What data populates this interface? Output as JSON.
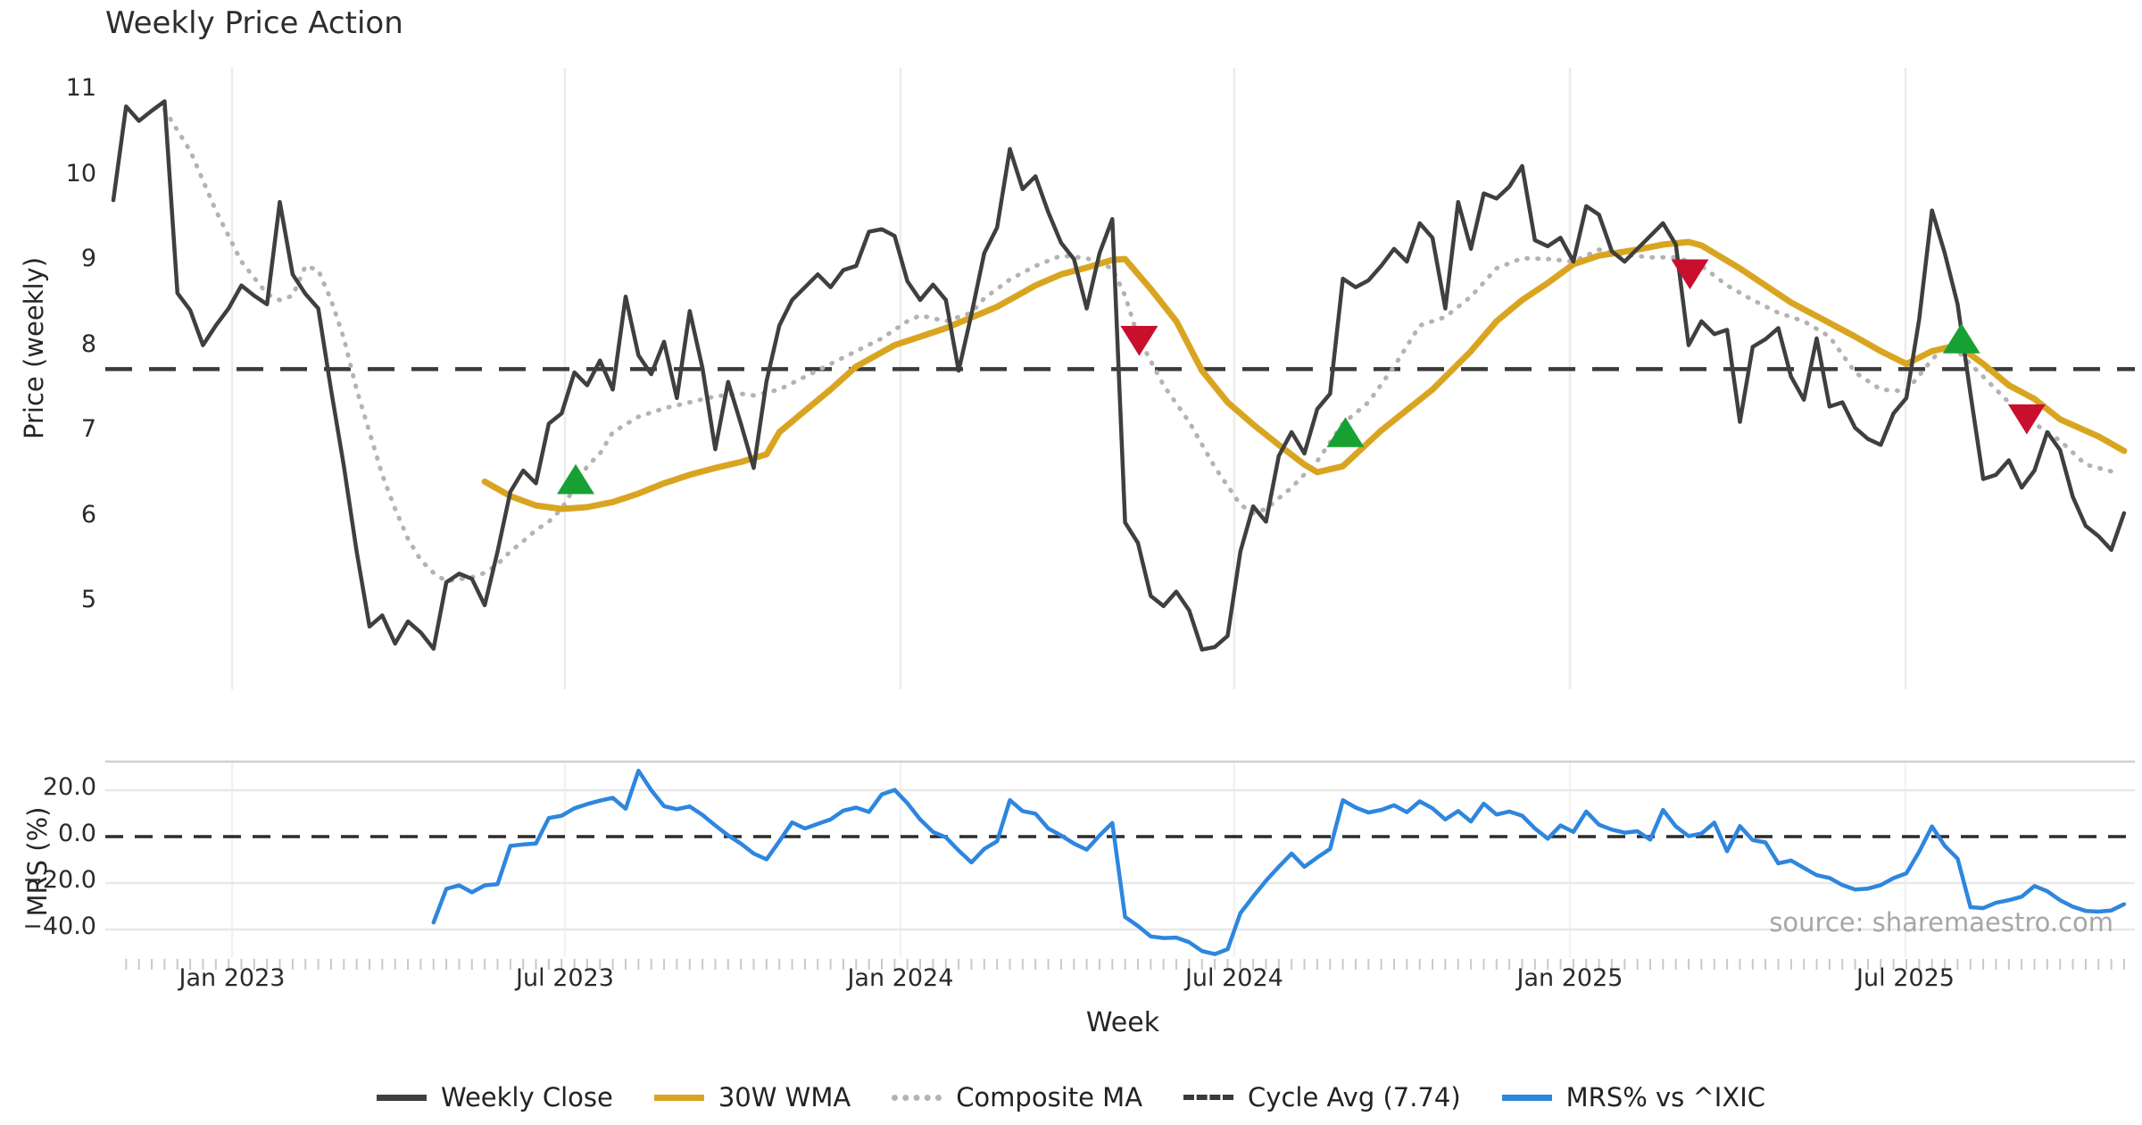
{
  "title": "Weekly Price Action",
  "xlabel": "Week",
  "source": "source: sharemaestro.com",
  "panels": {
    "price": {
      "ylabel": "Price (weekly)"
    },
    "mrs": {
      "ylabel": "MRS (%)"
    }
  },
  "chart_data": {
    "type": "line",
    "title": "Weekly Price Action",
    "xlabel": "Week",
    "x_tick_labels": [
      "Jan 2023",
      "Jul 2023",
      "Jan 2024",
      "Jul 2024",
      "Jan 2025",
      "Jul 2025"
    ],
    "x_tick_weeks": [
      9.27,
      35.26,
      61.46,
      87.52,
      113.73,
      139.93
    ],
    "weeks_total": 158,
    "grid": "on",
    "legend_position": "bottom-center",
    "legend": [
      {
        "label": "Weekly Close",
        "style": "solid",
        "color": "#3f3f3f"
      },
      {
        "label": "30W WMA",
        "style": "solid",
        "color": "#d9a521"
      },
      {
        "label": "Composite MA",
        "style": "dotted",
        "color": "#b3b3b3"
      },
      {
        "label": "Cycle Avg (7.74)",
        "style": "dashed",
        "color": "#3a3a3a"
      },
      {
        "label": "MRS% vs ^IXIC",
        "style": "solid",
        "color": "#2e86de"
      }
    ],
    "price_panel": {
      "ylabel": "Price (weekly)",
      "ylim": [
        4.2,
        11.3
      ],
      "yticks": [
        11,
        10,
        9,
        8,
        7,
        6,
        5
      ],
      "cycle_avg": 7.74,
      "weekly_close": [
        9.72,
        10.82,
        10.65,
        10.77,
        10.88,
        8.63,
        8.43,
        8.02,
        8.25,
        8.45,
        8.72,
        8.6,
        8.5,
        9.7,
        8.85,
        8.62,
        8.45,
        7.5,
        6.6,
        5.6,
        4.72,
        4.85,
        4.52,
        4.78,
        4.65,
        4.46,
        5.24,
        5.34,
        5.28,
        4.97,
        5.6,
        6.3,
        6.55,
        6.4,
        7.1,
        7.22,
        7.7,
        7.55,
        7.84,
        7.5,
        8.59,
        7.9,
        7.68,
        8.06,
        7.4,
        8.42,
        7.75,
        6.8,
        7.59,
        7.1,
        6.58,
        7.6,
        8.25,
        8.55,
        8.7,
        8.85,
        8.7,
        8.9,
        8.95,
        9.35,
        9.38,
        9.3,
        8.77,
        8.55,
        8.73,
        8.55,
        7.72,
        8.38,
        9.1,
        9.4,
        10.32,
        9.85,
        10.0,
        9.58,
        9.22,
        9.03,
        8.45,
        9.1,
        9.5,
        5.94,
        5.7,
        5.08,
        4.96,
        5.13,
        4.91,
        4.45,
        4.48,
        4.61,
        5.6,
        6.13,
        5.95,
        6.72,
        7.0,
        6.75,
        7.27,
        7.45,
        8.8,
        8.7,
        8.78,
        8.95,
        9.15,
        9.0,
        9.45,
        9.28,
        8.45,
        9.7,
        9.15,
        9.8,
        9.74,
        9.88,
        10.12,
        9.25,
        9.18,
        9.28,
        9.0,
        9.65,
        9.55,
        9.12,
        9.0,
        9.15,
        9.3,
        9.45,
        9.2,
        8.02,
        8.3,
        8.15,
        8.2,
        7.12,
        8.0,
        8.09,
        8.22,
        7.65,
        7.38,
        8.1,
        7.3,
        7.35,
        7.05,
        6.92,
        6.85,
        7.22,
        7.4,
        8.32,
        9.6,
        9.1,
        8.5,
        7.45,
        6.45,
        6.5,
        6.67,
        6.35,
        6.55,
        7.0,
        6.79,
        6.24,
        5.9,
        5.78,
        5.62,
        6.05
      ],
      "wma_30w": [
        [
          29,
          6.42
        ],
        [
          31,
          6.25
        ],
        [
          33,
          6.14
        ],
        [
          35,
          6.1
        ],
        [
          37,
          6.12
        ],
        [
          39,
          6.18
        ],
        [
          41,
          6.28
        ],
        [
          43,
          6.4
        ],
        [
          45,
          6.5
        ],
        [
          47,
          6.58
        ],
        [
          49,
          6.65
        ],
        [
          51,
          6.74
        ],
        [
          52,
          7.0
        ],
        [
          54,
          7.25
        ],
        [
          56,
          7.5
        ],
        [
          58,
          7.77
        ],
        [
          61,
          8.02
        ],
        [
          65,
          8.22
        ],
        [
          69,
          8.47
        ],
        [
          72,
          8.72
        ],
        [
          74,
          8.85
        ],
        [
          76,
          8.93
        ],
        [
          78,
          9.02
        ],
        [
          79,
          9.03
        ],
        [
          81,
          8.68
        ],
        [
          83,
          8.3
        ],
        [
          85,
          7.72
        ],
        [
          87,
          7.35
        ],
        [
          89,
          7.09
        ],
        [
          91,
          6.85
        ],
        [
          93,
          6.62
        ],
        [
          94,
          6.53
        ],
        [
          96,
          6.6
        ],
        [
          99,
          7.02
        ],
        [
          103,
          7.5
        ],
        [
          106,
          7.95
        ],
        [
          108,
          8.3
        ],
        [
          110,
          8.55
        ],
        [
          112,
          8.75
        ],
        [
          114,
          8.97
        ],
        [
          116,
          9.07
        ],
        [
          119,
          9.14
        ],
        [
          121,
          9.2
        ],
        [
          123,
          9.23
        ],
        [
          124,
          9.19
        ],
        [
          127,
          8.92
        ],
        [
          131,
          8.52
        ],
        [
          136,
          8.12
        ],
        [
          138,
          7.95
        ],
        [
          140,
          7.8
        ],
        [
          142,
          7.95
        ],
        [
          144,
          8.02
        ],
        [
          146,
          7.8
        ],
        [
          148,
          7.55
        ],
        [
          150,
          7.39
        ],
        [
          152,
          7.15
        ],
        [
          155,
          6.95
        ],
        [
          157,
          6.78
        ]
      ],
      "composite_ma": [
        [
          4,
          10.78
        ],
        [
          6,
          10.3
        ],
        [
          8,
          9.6
        ],
        [
          10,
          9.0
        ],
        [
          12,
          8.62
        ],
        [
          13,
          8.55
        ],
        [
          14,
          8.6
        ],
        [
          15,
          8.95
        ],
        [
          16,
          8.9
        ],
        [
          17,
          8.55
        ],
        [
          18,
          8.1
        ],
        [
          19,
          7.5
        ],
        [
          20,
          7.0
        ],
        [
          21,
          6.5
        ],
        [
          22,
          6.1
        ],
        [
          23,
          5.75
        ],
        [
          24,
          5.5
        ],
        [
          25,
          5.35
        ],
        [
          26,
          5.25
        ],
        [
          28,
          5.3
        ],
        [
          29,
          5.35
        ],
        [
          30,
          5.45
        ],
        [
          31,
          5.6
        ],
        [
          32,
          5.72
        ],
        [
          33,
          5.85
        ],
        [
          34,
          5.95
        ],
        [
          35,
          6.1
        ],
        [
          36,
          6.35
        ],
        [
          37,
          6.6
        ],
        [
          38,
          6.75
        ],
        [
          39,
          7.0
        ],
        [
          41,
          7.18
        ],
        [
          43,
          7.28
        ],
        [
          45,
          7.35
        ],
        [
          47,
          7.42
        ],
        [
          49,
          7.45
        ],
        [
          50,
          7.43
        ],
        [
          52,
          7.5
        ],
        [
          54,
          7.65
        ],
        [
          56,
          7.8
        ],
        [
          58,
          7.95
        ],
        [
          60,
          8.1
        ],
        [
          62,
          8.3
        ],
        [
          63,
          8.37
        ],
        [
          65,
          8.3
        ],
        [
          67,
          8.4
        ],
        [
          68,
          8.57
        ],
        [
          70,
          8.79
        ],
        [
          72,
          8.95
        ],
        [
          74,
          9.07
        ],
        [
          76,
          9.04
        ],
        [
          78,
          8.92
        ],
        [
          79,
          8.6
        ],
        [
          80,
          8.12
        ],
        [
          82,
          7.55
        ],
        [
          84,
          7.12
        ],
        [
          86,
          6.59
        ],
        [
          88,
          6.15
        ],
        [
          89,
          6.05
        ],
        [
          90,
          6.1
        ],
        [
          92,
          6.35
        ],
        [
          94,
          6.66
        ],
        [
          96,
          7.1
        ],
        [
          98,
          7.35
        ],
        [
          100,
          7.77
        ],
        [
          102,
          8.25
        ],
        [
          104,
          8.35
        ],
        [
          106,
          8.59
        ],
        [
          108,
          8.92
        ],
        [
          110,
          9.04
        ],
        [
          112,
          9.03
        ],
        [
          114,
          9.0
        ],
        [
          116,
          9.14
        ],
        [
          118,
          9.08
        ],
        [
          120,
          9.05
        ],
        [
          122,
          9.05
        ],
        [
          124,
          8.95
        ],
        [
          126,
          8.72
        ],
        [
          128,
          8.55
        ],
        [
          130,
          8.4
        ],
        [
          132,
          8.3
        ],
        [
          134,
          8.12
        ],
        [
          136,
          7.7
        ],
        [
          138,
          7.5
        ],
        [
          140,
          7.48
        ],
        [
          142,
          7.85
        ],
        [
          143,
          8.0
        ],
        [
          144,
          7.95
        ],
        [
          146,
          7.65
        ],
        [
          148,
          7.35
        ],
        [
          150,
          7.1
        ],
        [
          152,
          6.9
        ],
        [
          154,
          6.62
        ],
        [
          156,
          6.54
        ]
      ],
      "markers": [
        {
          "signal": "buy",
          "week": 36.1,
          "price": 6.45
        },
        {
          "signal": "sell",
          "week": 80.1,
          "price": 8.07
        },
        {
          "signal": "buy",
          "week": 96.2,
          "price": 7.0
        },
        {
          "signal": "sell",
          "week": 123.1,
          "price": 8.85
        },
        {
          "signal": "buy",
          "week": 144.3,
          "price": 8.1
        },
        {
          "signal": "sell",
          "week": 149.4,
          "price": 7.15
        }
      ]
    },
    "mrs_panel": {
      "ylabel": "MRS (%)",
      "ylim": [
        -55,
        33
      ],
      "yticks": [
        {
          "v": 20,
          "label": "20.0"
        },
        {
          "v": 0,
          "label": "0.0"
        },
        {
          "v": -20,
          "label": "−20.0"
        },
        {
          "v": -40,
          "label": "−40.0"
        }
      ],
      "zero_line": 0,
      "mrs_vs_ixic": [
        [
          25,
          -37.0
        ],
        [
          26,
          -22.5
        ],
        [
          27,
          -21.0
        ],
        [
          28,
          -24.0
        ],
        [
          29,
          -21.0
        ],
        [
          30,
          -20.5
        ],
        [
          31,
          -4.0
        ],
        [
          32,
          -3.4
        ],
        [
          33,
          -3.0
        ],
        [
          34,
          8.0
        ],
        [
          35,
          9.0
        ],
        [
          36,
          12.2
        ],
        [
          37,
          14.0
        ],
        [
          38,
          15.5
        ],
        [
          39,
          16.7
        ],
        [
          40,
          12.0
        ],
        [
          41,
          28.4
        ],
        [
          42,
          20.0
        ],
        [
          43,
          13.1
        ],
        [
          44,
          11.8
        ],
        [
          45,
          13.0
        ],
        [
          46,
          9.3
        ],
        [
          47,
          4.8
        ],
        [
          48,
          0.5
        ],
        [
          49,
          -3.0
        ],
        [
          50,
          -7.3
        ],
        [
          51,
          -9.8
        ],
        [
          52,
          -2.0
        ],
        [
          53,
          6.1
        ],
        [
          54,
          3.5
        ],
        [
          55,
          5.5
        ],
        [
          56,
          7.4
        ],
        [
          57,
          11.2
        ],
        [
          58,
          12.5
        ],
        [
          59,
          10.6
        ],
        [
          60,
          18.2
        ],
        [
          61,
          20.1
        ],
        [
          62,
          14.4
        ],
        [
          63,
          7.4
        ],
        [
          64,
          2.0
        ],
        [
          65,
          -0.3
        ],
        [
          66,
          -6.0
        ],
        [
          67,
          -11.1
        ],
        [
          68,
          -5.3
        ],
        [
          69,
          -2.0
        ],
        [
          70,
          15.7
        ],
        [
          71,
          11.0
        ],
        [
          72,
          9.9
        ],
        [
          73,
          3.5
        ],
        [
          74,
          0.5
        ],
        [
          75,
          -3.0
        ],
        [
          76,
          -5.6
        ],
        [
          77,
          0.5
        ],
        [
          78,
          5.9
        ],
        [
          79,
          -34.6
        ],
        [
          80,
          -38.5
        ],
        [
          81,
          -43.0
        ],
        [
          82,
          -43.7
        ],
        [
          83,
          -43.5
        ],
        [
          84,
          -45.5
        ],
        [
          85,
          -49.3
        ],
        [
          86,
          -50.6
        ],
        [
          87,
          -48.5
        ],
        [
          88,
          -33.0
        ],
        [
          89,
          -25.8
        ],
        [
          90,
          -19.0
        ],
        [
          91,
          -13.0
        ],
        [
          92,
          -7.3
        ],
        [
          93,
          -13.0
        ],
        [
          94,
          -9.0
        ],
        [
          95,
          -5.3
        ],
        [
          96,
          15.7
        ],
        [
          97,
          12.5
        ],
        [
          98,
          10.4
        ],
        [
          99,
          11.5
        ],
        [
          100,
          13.5
        ],
        [
          101,
          10.5
        ],
        [
          102,
          15.2
        ],
        [
          103,
          12.2
        ],
        [
          104,
          7.4
        ],
        [
          105,
          11.0
        ],
        [
          106,
          6.5
        ],
        [
          107,
          14.2
        ],
        [
          108,
          9.5
        ],
        [
          109,
          10.8
        ],
        [
          110,
          9.0
        ],
        [
          111,
          3.5
        ],
        [
          112,
          -0.9
        ],
        [
          113,
          4.8
        ],
        [
          114,
          2.0
        ],
        [
          115,
          10.8
        ],
        [
          116,
          5.1
        ],
        [
          117,
          3.0
        ],
        [
          118,
          1.7
        ],
        [
          119,
          2.3
        ],
        [
          120,
          -1.3
        ],
        [
          121,
          11.5
        ],
        [
          122,
          4.4
        ],
        [
          123,
          0.2
        ],
        [
          124,
          1.3
        ],
        [
          125,
          6.0
        ],
        [
          126,
          -6.3
        ],
        [
          127,
          4.5
        ],
        [
          128,
          -1.5
        ],
        [
          129,
          -2.5
        ],
        [
          130,
          -11.5
        ],
        [
          131,
          -10.3
        ],
        [
          132,
          -13.5
        ],
        [
          133,
          -16.6
        ],
        [
          134,
          -17.8
        ],
        [
          135,
          -20.9
        ],
        [
          136,
          -22.8
        ],
        [
          137,
          -22.4
        ],
        [
          138,
          -20.9
        ],
        [
          139,
          -17.9
        ],
        [
          140,
          -15.8
        ],
        [
          141,
          -6.5
        ],
        [
          142,
          4.4
        ],
        [
          143,
          -4.0
        ],
        [
          144,
          -9.5
        ],
        [
          145,
          -30.4
        ],
        [
          146,
          -30.8
        ],
        [
          147,
          -28.5
        ],
        [
          148,
          -27.4
        ],
        [
          149,
          -25.9
        ],
        [
          150,
          -21.3
        ],
        [
          151,
          -23.5
        ],
        [
          152,
          -27.4
        ],
        [
          153,
          -30.2
        ],
        [
          154,
          -32.0
        ],
        [
          155,
          -32.3
        ],
        [
          156,
          -31.8
        ],
        [
          157,
          -29.1
        ]
      ]
    },
    "colors": {
      "weekly_close": "#3f3f3f",
      "wma": "#d9a521",
      "composite": "#b3b3b3",
      "cycle_avg": "#3a3a3a",
      "mrs": "#2e86de",
      "buy_marker": "#18a133",
      "sell_marker": "#c8102e",
      "grid": "#ececec",
      "mrs_grid": "#e8e8e8",
      "panel_edge": "#d0d0d0",
      "minor_tick": "#c9c9c9"
    }
  }
}
